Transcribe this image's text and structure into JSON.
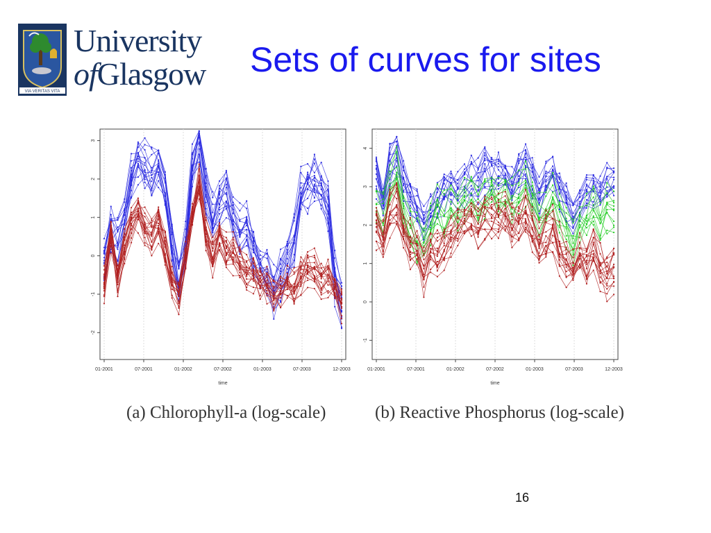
{
  "slide": {
    "title": "Sets of curves for sites",
    "page_number": "16"
  },
  "logo": {
    "line1": "University",
    "line2_of": "of",
    "line2_name": "Glasgow",
    "motto": "VIA VERITAS VITA"
  },
  "colors": {
    "title": "#1a1aee",
    "logo_navy": "#1a3561",
    "series_blue": "#2a2ae0",
    "series_red": "#b02020",
    "series_green": "#22cc22"
  },
  "chart_data": [
    {
      "type": "line",
      "caption": "(a) Chlorophyll-a (log-scale)",
      "xlabel": "time",
      "ylabel": "",
      "x_ticks": [
        "01-2001",
        "07-2001",
        "01-2002",
        "07-2002",
        "01-2003",
        "07-2003",
        "12-2003"
      ],
      "y_ticks": [
        "-2",
        "-1",
        "0",
        "1",
        "2",
        "3"
      ],
      "ylim": [
        -2.7,
        3.3
      ],
      "grid": "vertical",
      "x": [
        0,
        1,
        2,
        3,
        4,
        5,
        6,
        7,
        8,
        9,
        10,
        11,
        12,
        13,
        14,
        15,
        16,
        17,
        18,
        19,
        20,
        21,
        22,
        23,
        24,
        25,
        26,
        27,
        28,
        29,
        30,
        31,
        32,
        33,
        34,
        35
      ],
      "bundles": [
        {
          "name": "blue",
          "color": "#2a2ae0",
          "count": 16,
          "spread": 0.55,
          "base": [
            -0.2,
            0.6,
            0.3,
            0.9,
            2.0,
            2.6,
            2.3,
            2.1,
            2.4,
            1.6,
            0.3,
            -0.6,
            0.2,
            2.2,
            2.9,
            1.7,
            0.9,
            1.3,
            1.6,
            1.0,
            0.6,
            0.7,
            0.1,
            -0.3,
            -0.5,
            -0.9,
            -0.6,
            -0.2,
            0.3,
            1.6,
            1.8,
            1.9,
            1.8,
            1.2,
            -0.6,
            -1.3
          ]
        },
        {
          "name": "red",
          "color": "#b02020",
          "count": 18,
          "spread": 0.45,
          "base": [
            -0.6,
            0.6,
            -0.5,
            0.3,
            0.9,
            1.1,
            0.8,
            0.6,
            0.9,
            0.2,
            -0.6,
            -1.0,
            0.0,
            1.1,
            1.9,
            0.6,
            0.0,
            0.5,
            0.1,
            0.1,
            -0.2,
            -0.3,
            -0.4,
            -0.6,
            -0.7,
            -1.0,
            -0.9,
            -0.6,
            -0.8,
            -0.5,
            -0.2,
            -0.3,
            -0.6,
            -0.5,
            -0.8,
            -1.2
          ]
        }
      ]
    },
    {
      "type": "line",
      "caption": "(b) Reactive Phosphorus (log-scale)",
      "xlabel": "time",
      "ylabel": "",
      "x_ticks": [
        "01-2001",
        "07-2001",
        "01-2002",
        "07-2002",
        "01-2003",
        "07-2003",
        "12-2003"
      ],
      "y_ticks": [
        "-1",
        "0",
        "1",
        "2",
        "3",
        "4"
      ],
      "ylim": [
        -1.5,
        4.5
      ],
      "grid": "vertical",
      "x": [
        0,
        1,
        2,
        3,
        4,
        5,
        6,
        7,
        8,
        9,
        10,
        11,
        12,
        13,
        14,
        15,
        16,
        17,
        18,
        19,
        20,
        21,
        22,
        23,
        24,
        25,
        26,
        27,
        28,
        29,
        30,
        31,
        32,
        33,
        34,
        35
      ],
      "bundles": [
        {
          "name": "blue",
          "color": "#2a2ae0",
          "count": 14,
          "spread": 0.5,
          "base": [
            3.4,
            2.6,
            3.6,
            3.8,
            3.2,
            2.8,
            2.5,
            2.2,
            2.4,
            2.6,
            2.8,
            3.0,
            2.9,
            3.1,
            3.3,
            3.2,
            3.5,
            3.3,
            3.4,
            3.2,
            3.0,
            3.4,
            3.6,
            3.2,
            2.8,
            3.2,
            3.4,
            2.9,
            2.6,
            2.2,
            2.5,
            2.9,
            3.0,
            2.8,
            3.1,
            3.2
          ]
        },
        {
          "name": "green",
          "color": "#22cc22",
          "count": 10,
          "spread": 0.5,
          "base": [
            2.6,
            2.3,
            3.0,
            3.4,
            2.4,
            1.9,
            1.6,
            1.5,
            1.9,
            2.5,
            2.2,
            2.6,
            2.4,
            2.7,
            2.8,
            2.5,
            2.8,
            2.9,
            2.7,
            2.9,
            2.6,
            2.8,
            3.0,
            2.7,
            2.2,
            2.5,
            2.7,
            2.3,
            1.9,
            1.5,
            2.0,
            2.3,
            2.6,
            2.1,
            2.4,
            2.3
          ]
        },
        {
          "name": "red",
          "color": "#b02020",
          "count": 16,
          "spread": 0.5,
          "base": [
            2.0,
            1.6,
            2.3,
            2.6,
            1.8,
            1.5,
            1.3,
            0.8,
            1.4,
            1.2,
            1.5,
            1.7,
            1.9,
            2.0,
            2.2,
            2.0,
            2.2,
            2.1,
            2.2,
            2.3,
            2.0,
            2.1,
            2.3,
            1.9,
            1.5,
            1.7,
            2.0,
            1.4,
            1.1,
            0.8,
            1.3,
            1.0,
            1.4,
            0.9,
            0.7,
            0.9
          ]
        }
      ]
    }
  ]
}
